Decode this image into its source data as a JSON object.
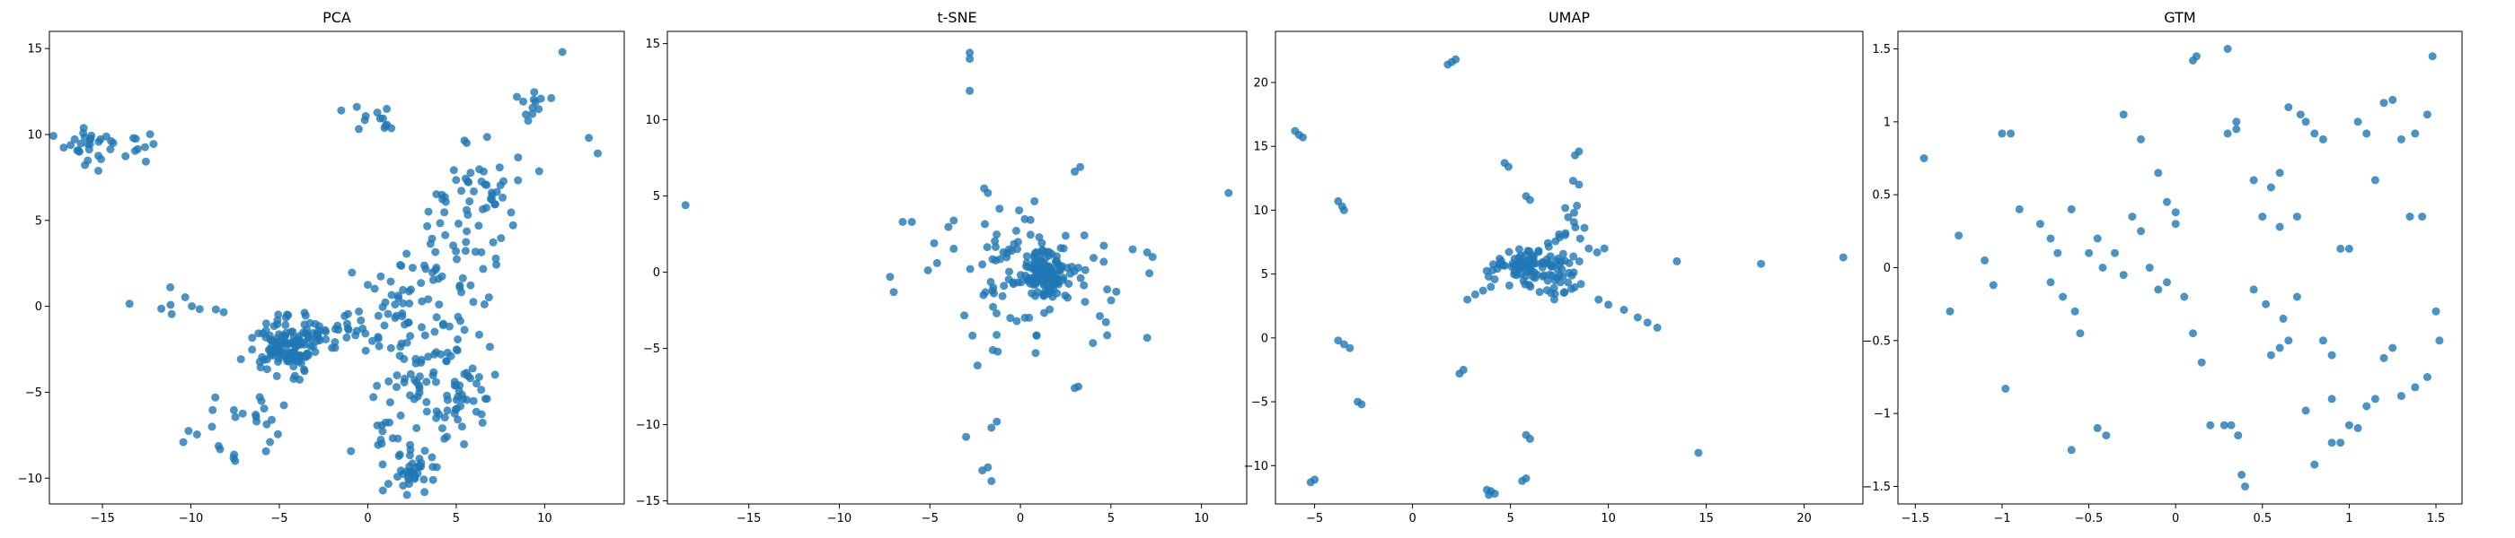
{
  "figure": {
    "point_color": "#1f77b4",
    "point_alpha": 0.8
  },
  "chart_data": [
    {
      "type": "scatter",
      "title": "PCA",
      "xlabel": "",
      "ylabel": "",
      "xlim": [
        -18,
        14.5
      ],
      "ylim": [
        -11.5,
        16
      ],
      "xticks": [
        -15,
        -10,
        -5,
        0,
        5,
        10
      ],
      "yticks": [
        -10,
        -5,
        0,
        5,
        10,
        15
      ],
      "clusters": [
        {
          "cx": -15.5,
          "cy": 9.2,
          "sx": 0.9,
          "sy": 0.6,
          "n": 30
        },
        {
          "cx": -12.8,
          "cy": 9.0,
          "sx": 0.6,
          "sy": 0.6,
          "n": 7
        },
        {
          "cx": 0.5,
          "cy": 11.0,
          "sx": 0.7,
          "sy": 0.4,
          "n": 12
        },
        {
          "cx": -10.5,
          "cy": -0.1,
          "sx": 1.2,
          "sy": 0.4,
          "n": 10
        },
        {
          "cx": -4.5,
          "cy": -2.2,
          "sx": 1.2,
          "sy": 0.8,
          "n": 120
        },
        {
          "cx": -2.0,
          "cy": -1.4,
          "sx": 1.3,
          "sy": 0.6,
          "n": 30
        },
        {
          "cx": -7.0,
          "cy": -6.8,
          "sx": 1.5,
          "sy": 1.1,
          "n": 25
        },
        {
          "cx": 1.5,
          "cy": -0.5,
          "sx": 1.5,
          "sy": 1.5,
          "n": 40
        },
        {
          "cx": 4.5,
          "cy": 2.0,
          "sx": 1.5,
          "sy": 2.3,
          "n": 60
        },
        {
          "cx": 6.5,
          "cy": 7.0,
          "sx": 1.0,
          "sy": 1.3,
          "n": 40
        },
        {
          "cx": 9.5,
          "cy": 11.8,
          "sx": 0.6,
          "sy": 0.6,
          "n": 12
        },
        {
          "cx": 3.0,
          "cy": -4.5,
          "sx": 1.4,
          "sy": 1.3,
          "n": 50
        },
        {
          "cx": 5.3,
          "cy": -5.0,
          "sx": 0.8,
          "sy": 1.3,
          "n": 35
        },
        {
          "cx": 2.5,
          "cy": -9.5,
          "sx": 0.7,
          "sy": 0.8,
          "n": 40
        },
        {
          "cx": 1.0,
          "cy": -7.5,
          "sx": 0.6,
          "sy": 0.5,
          "n": 10
        }
      ],
      "points": [
        [
          11,
          14.8
        ],
        [
          12.5,
          9.8
        ],
        [
          13,
          8.9
        ],
        [
          -1.5,
          11.4
        ],
        [
          -7.5,
          -9.0
        ]
      ]
    },
    {
      "type": "scatter",
      "title": "t-SNE",
      "xlabel": "",
      "ylabel": "",
      "xlim": [
        -19.5,
        12.5
      ],
      "ylim": [
        -15.2,
        15.8
      ],
      "xticks": [
        -15,
        -10,
        -5,
        0,
        5,
        10
      ],
      "yticks": [
        -15,
        -10,
        -5,
        0,
        5,
        10,
        15
      ],
      "clusters": [
        {
          "cx": 1.5,
          "cy": 0.0,
          "sx": 0.8,
          "sy": 0.7,
          "n": 110
        },
        {
          "cx": 0.5,
          "cy": 0.0,
          "sx": 2.0,
          "sy": 2.0,
          "n": 60
        },
        {
          "cx": 1.0,
          "cy": -1.0,
          "sx": 3.2,
          "sy": 3.0,
          "n": 40
        }
      ],
      "points": [
        [
          -18.5,
          4.4
        ],
        [
          11.5,
          5.2
        ],
        [
          -2.8,
          14.4
        ],
        [
          -2.8,
          14.0
        ],
        [
          -2.8,
          11.9
        ],
        [
          -2.1,
          -13.0
        ],
        [
          -1.8,
          -12.8
        ],
        [
          -1.6,
          -13.7
        ],
        [
          -1.3,
          -9.8
        ],
        [
          -1.6,
          -10.2
        ],
        [
          -3.0,
          -10.8
        ],
        [
          3.2,
          -7.5
        ],
        [
          3.0,
          -7.6
        ],
        [
          3.0,
          6.6
        ],
        [
          3.3,
          6.9
        ],
        [
          -6.5,
          3.3
        ],
        [
          -6.0,
          3.3
        ],
        [
          -7.2,
          -0.3
        ],
        [
          -7.0,
          -1.3
        ],
        [
          7.0,
          1.3
        ],
        [
          7.3,
          1.0
        ],
        [
          7.0,
          -4.3
        ],
        [
          -4.6,
          0.6
        ],
        [
          6.2,
          1.5
        ],
        [
          -1.8,
          5.2
        ],
        [
          -2.0,
          5.5
        ]
      ]
    },
    {
      "type": "scatter",
      "title": "UMAP",
      "xlabel": "",
      "ylabel": "",
      "xlim": [
        -7,
        23
      ],
      "ylim": [
        -13,
        24
      ],
      "xticks": [
        -5,
        0,
        5,
        10,
        15,
        20
      ],
      "yticks": [
        -10,
        -5,
        0,
        5,
        10,
        15,
        20
      ],
      "clusters": [
        {
          "cx": 5.8,
          "cy": 5.5,
          "sx": 0.9,
          "sy": 0.7,
          "n": 80
        },
        {
          "cx": 7.5,
          "cy": 6.0,
          "sx": 1.0,
          "sy": 1.0,
          "n": 25
        },
        {
          "cx": 8.0,
          "cy": 8.5,
          "sx": 0.5,
          "sy": 0.8,
          "n": 10
        },
        {
          "cx": 7.0,
          "cy": 4.0,
          "sx": 0.8,
          "sy": 0.6,
          "n": 15
        }
      ],
      "points": [
        [
          -6.0,
          16.2
        ],
        [
          -5.8,
          15.9
        ],
        [
          -5.6,
          15.7
        ],
        [
          1.8,
          21.4
        ],
        [
          2.0,
          21.6
        ],
        [
          2.2,
          21.8
        ],
        [
          -3.8,
          10.7
        ],
        [
          -3.6,
          10.3
        ],
        [
          -3.5,
          10.0
        ],
        [
          8.3,
          14.3
        ],
        [
          8.5,
          14.6
        ],
        [
          4.7,
          13.7
        ],
        [
          4.9,
          13.4
        ],
        [
          5.8,
          11.1
        ],
        [
          6.0,
          10.8
        ],
        [
          8.2,
          12.3
        ],
        [
          8.5,
          12.0
        ],
        [
          -3.8,
          -0.2
        ],
        [
          -3.5,
          -0.5
        ],
        [
          -3.2,
          -0.8
        ],
        [
          -2.8,
          -5.0
        ],
        [
          -2.6,
          -5.2
        ],
        [
          -5.2,
          -11.3
        ],
        [
          -5.0,
          -11.1
        ],
        [
          2.4,
          -2.8
        ],
        [
          2.6,
          -2.5
        ],
        [
          2.8,
          3.0
        ],
        [
          3.2,
          3.4
        ],
        [
          3.6,
          3.7
        ],
        [
          4.0,
          4.0
        ],
        [
          5.8,
          -7.6
        ],
        [
          6.0,
          -7.9
        ],
        [
          5.6,
          -11.2
        ],
        [
          5.8,
          -11.0
        ],
        [
          3.8,
          -11.9
        ],
        [
          4.2,
          -12.2
        ],
        [
          4.0,
          -12.0
        ],
        [
          3.9,
          -12.3
        ],
        [
          10.0,
          2.6
        ],
        [
          10.8,
          2.2
        ],
        [
          11.5,
          1.6
        ],
        [
          12.0,
          1.2
        ],
        [
          12.5,
          0.8
        ],
        [
          9.5,
          3.0
        ],
        [
          13.5,
          6.0
        ],
        [
          14.6,
          -9.0
        ],
        [
          17.8,
          5.8
        ],
        [
          22.0,
          6.3
        ],
        [
          9.0,
          7.0
        ],
        [
          9.8,
          7.0
        ]
      ]
    },
    {
      "type": "scatter",
      "title": "GTM",
      "xlabel": "",
      "ylabel": "",
      "xlim": [
        -1.6,
        1.65
      ],
      "ylim": [
        -1.62,
        1.62
      ],
      "xticks": [
        -1.5,
        -1.0,
        -0.5,
        0.0,
        0.5,
        1.0,
        1.5
      ],
      "yticks": [
        -1.5,
        -1.0,
        -0.5,
        0.0,
        0.5,
        1.0,
        1.5
      ],
      "points": [
        [
          -1.45,
          0.75
        ],
        [
          -1.3,
          -0.3
        ],
        [
          -1.25,
          0.22
        ],
        [
          -1.0,
          0.92
        ],
        [
          -0.95,
          0.92
        ],
        [
          -0.98,
          -0.83
        ],
        [
          -0.9,
          0.4
        ],
        [
          -0.78,
          0.3
        ],
        [
          -0.72,
          0.2
        ],
        [
          -0.68,
          0.1
        ],
        [
          -0.72,
          -0.1
        ],
        [
          -0.65,
          -0.2
        ],
        [
          -0.6,
          0.4
        ],
        [
          -0.58,
          -0.3
        ],
        [
          -0.55,
          -0.45
        ],
        [
          -0.6,
          -1.25
        ],
        [
          -0.45,
          -1.1
        ],
        [
          -0.4,
          -1.15
        ],
        [
          -0.5,
          0.1
        ],
        [
          -0.45,
          0.2
        ],
        [
          -0.42,
          0.0
        ],
        [
          -0.35,
          0.1
        ],
        [
          -0.3,
          -0.05
        ],
        [
          -0.25,
          0.35
        ],
        [
          -0.2,
          0.25
        ],
        [
          -0.15,
          0.0
        ],
        [
          -0.1,
          -0.15
        ],
        [
          -0.05,
          -0.1
        ],
        [
          0.0,
          0.3
        ],
        [
          0.0,
          0.38
        ],
        [
          0.05,
          -0.2
        ],
        [
          0.1,
          -0.45
        ],
        [
          0.15,
          -0.65
        ],
        [
          0.2,
          -1.08
        ],
        [
          0.28,
          -1.08
        ],
        [
          0.32,
          -1.08
        ],
        [
          0.36,
          -1.15
        ],
        [
          0.38,
          -1.42
        ],
        [
          0.4,
          -1.5
        ],
        [
          0.35,
          1.0
        ],
        [
          0.3,
          0.92
        ],
        [
          0.45,
          0.6
        ],
        [
          0.55,
          0.55
        ],
        [
          0.6,
          0.65
        ],
        [
          0.65,
          1.1
        ],
        [
          0.72,
          1.05
        ],
        [
          0.75,
          1.0
        ],
        [
          0.8,
          0.92
        ],
        [
          0.85,
          0.88
        ],
        [
          0.85,
          -0.5
        ],
        [
          0.9,
          -0.6
        ],
        [
          0.9,
          -0.9
        ],
        [
          0.95,
          -1.2
        ],
        [
          0.95,
          0.13
        ],
        [
          1.0,
          0.13
        ],
        [
          1.05,
          1.0
        ],
        [
          1.1,
          0.92
        ],
        [
          1.15,
          0.6
        ],
        [
          1.2,
          1.13
        ],
        [
          1.25,
          1.15
        ],
        [
          1.3,
          0.88
        ],
        [
          1.35,
          0.35
        ],
        [
          1.38,
          0.92
        ],
        [
          1.42,
          0.35
        ],
        [
          1.45,
          1.05
        ],
        [
          1.48,
          1.45
        ],
        [
          1.5,
          -0.3
        ],
        [
          1.52,
          -0.5
        ],
        [
          1.45,
          -0.75
        ],
        [
          1.38,
          -0.82
        ],
        [
          1.3,
          -0.88
        ],
        [
          1.25,
          -0.55
        ],
        [
          1.2,
          -0.62
        ],
        [
          1.15,
          -0.9
        ],
        [
          1.1,
          -0.95
        ],
        [
          1.05,
          -1.1
        ],
        [
          1.0,
          -1.08
        ],
        [
          0.9,
          -1.2
        ],
        [
          0.8,
          -1.35
        ],
        [
          0.75,
          -0.98
        ],
        [
          0.65,
          -0.5
        ],
        [
          0.6,
          -0.55
        ],
        [
          0.55,
          -0.6
        ],
        [
          -0.3,
          1.05
        ],
        [
          -0.2,
          0.88
        ],
        [
          -0.1,
          0.65
        ],
        [
          -0.05,
          0.45
        ],
        [
          0.1,
          1.42
        ],
        [
          0.12,
          1.45
        ],
        [
          0.3,
          1.5
        ],
        [
          0.35,
          0.95
        ],
        [
          0.5,
          0.35
        ],
        [
          0.6,
          0.28
        ],
        [
          0.7,
          0.35
        ],
        [
          0.7,
          -0.2
        ],
        [
          0.62,
          -0.35
        ],
        [
          0.52,
          -0.25
        ],
        [
          0.45,
          -0.15
        ],
        [
          -1.05,
          -0.12
        ],
        [
          -1.1,
          0.05
        ]
      ]
    }
  ]
}
